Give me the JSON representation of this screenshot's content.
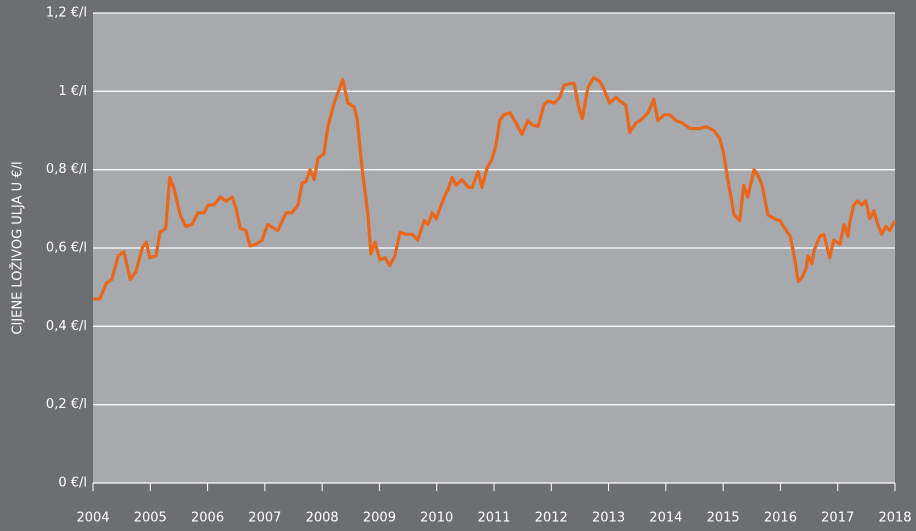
{
  "chart_data": {
    "type": "line",
    "y_label": "CIJENE LOŽIVOG ULJA U €/l",
    "x": [
      2004,
      2004.12,
      2004.23,
      2004.33,
      2004.44,
      2004.54,
      2004.65,
      2004.75,
      2004.86,
      2004.93,
      2004.99,
      2005.1,
      2005.17,
      2005.27,
      2005.34,
      2005.41,
      2005.52,
      2005.62,
      2005.73,
      2005.83,
      2005.94,
      2006.01,
      2006.11,
      2006.22,
      2006.32,
      2006.43,
      2006.5,
      2006.57,
      2006.67,
      2006.74,
      2006.85,
      2006.95,
      2007.05,
      2007.16,
      2007.23,
      2007.37,
      2007.47,
      2007.58,
      2007.65,
      2007.72,
      2007.79,
      2007.86,
      2007.93,
      2008.03,
      2008.1,
      2008.21,
      2008.31,
      2008.36,
      2008.45,
      2008.56,
      2008.61,
      2008.7,
      2008.8,
      2008.85,
      2008.92,
      2009.01,
      2009.1,
      2009.18,
      2009.27,
      2009.36,
      2009.46,
      2009.57,
      2009.67,
      2009.78,
      2009.85,
      2009.92,
      2009.99,
      2010.13,
      2010.2,
      2010.27,
      2010.34,
      2010.44,
      2010.55,
      2010.62,
      2010.72,
      2010.79,
      2010.88,
      2010.96,
      2011.03,
      2011.1,
      2011.17,
      2011.28,
      2011.38,
      2011.49,
      2011.59,
      2011.66,
      2011.77,
      2011.87,
      2011.94,
      2012.05,
      2012.15,
      2012.22,
      2012.33,
      2012.4,
      2012.47,
      2012.54,
      2012.64,
      2012.74,
      2012.85,
      2012.92,
      2013.02,
      2013.13,
      2013.2,
      2013.3,
      2013.37,
      2013.48,
      2013.55,
      2013.69,
      2013.79,
      2013.86,
      2013.97,
      2014.07,
      2014.18,
      2014.28,
      2014.42,
      2014.6,
      2014.7,
      2014.84,
      2014.94,
      2015.01,
      2015.08,
      2015.15,
      2015.19,
      2015.29,
      2015.36,
      2015.43,
      2015.54,
      2015.61,
      2015.68,
      2015.78,
      2015.89,
      2015.99,
      2016.1,
      2016.17,
      2016.24,
      2016.31,
      2016.38,
      2016.45,
      2016.48,
      2016.55,
      2016.59,
      2016.69,
      2016.76,
      2016.86,
      2016.93,
      2017.04,
      2017.11,
      2017.18,
      2017.21,
      2017.28,
      2017.35,
      2017.42,
      2017.49,
      2017.56,
      2017.63,
      2017.7,
      2017.77,
      2017.84,
      2017.91,
      2018.0
    ],
    "series": [
      {
        "name": "Loživo ulje",
        "color": "#e8671c",
        "values": [
          0.47,
          0.47,
          0.51,
          0.52,
          0.58,
          0.59,
          0.52,
          0.54,
          0.6,
          0.615,
          0.575,
          0.58,
          0.64,
          0.65,
          0.78,
          0.755,
          0.685,
          0.655,
          0.66,
          0.69,
          0.69,
          0.71,
          0.71,
          0.73,
          0.72,
          0.73,
          0.7,
          0.65,
          0.645,
          0.605,
          0.61,
          0.62,
          0.66,
          0.65,
          0.645,
          0.69,
          0.69,
          0.71,
          0.765,
          0.77,
          0.8,
          0.775,
          0.83,
          0.84,
          0.91,
          0.97,
          1.01,
          1.03,
          0.97,
          0.96,
          0.93,
          0.8,
          0.685,
          0.585,
          0.615,
          0.57,
          0.575,
          0.555,
          0.58,
          0.64,
          0.635,
          0.635,
          0.62,
          0.67,
          0.66,
          0.69,
          0.675,
          0.73,
          0.75,
          0.78,
          0.76,
          0.775,
          0.755,
          0.755,
          0.795,
          0.755,
          0.805,
          0.825,
          0.86,
          0.925,
          0.94,
          0.945,
          0.92,
          0.89,
          0.925,
          0.915,
          0.91,
          0.965,
          0.975,
          0.97,
          0.985,
          1.015,
          1.02,
          1.02,
          0.965,
          0.93,
          1.01,
          1.035,
          1.025,
          1.005,
          0.97,
          0.985,
          0.975,
          0.965,
          0.895,
          0.92,
          0.925,
          0.945,
          0.98,
          0.925,
          0.94,
          0.94,
          0.925,
          0.92,
          0.905,
          0.905,
          0.91,
          0.9,
          0.88,
          0.84,
          0.775,
          0.72,
          0.685,
          0.67,
          0.76,
          0.73,
          0.8,
          0.785,
          0.76,
          0.685,
          0.675,
          0.67,
          0.645,
          0.63,
          0.58,
          0.515,
          0.525,
          0.55,
          0.58,
          0.56,
          0.595,
          0.63,
          0.635,
          0.575,
          0.62,
          0.61,
          0.66,
          0.63,
          0.665,
          0.71,
          0.72,
          0.71,
          0.72,
          0.675,
          0.695,
          0.66,
          0.635,
          0.655,
          0.645,
          0.67
        ]
      }
    ],
    "xlim": [
      2004,
      2018
    ],
    "xticks": [
      2004,
      2005,
      2006,
      2007,
      2008,
      2009,
      2010,
      2011,
      2012,
      2013,
      2014,
      2015,
      2016,
      2017,
      2018
    ],
    "ylim": [
      0,
      1.2
    ],
    "yticks": [
      {
        "value": 0,
        "label": "0 €/l"
      },
      {
        "value": 0.2,
        "label": "0,2 €/l"
      },
      {
        "value": 0.4,
        "label": "0,4 €/l"
      },
      {
        "value": 0.6,
        "label": "0,6 €/l"
      },
      {
        "value": 0.8,
        "label": "0,8 €/l"
      },
      {
        "value": 1,
        "label": "1 €/l"
      },
      {
        "value": 1.2,
        "label": "1,2 €/l"
      }
    ],
    "grid": true
  }
}
